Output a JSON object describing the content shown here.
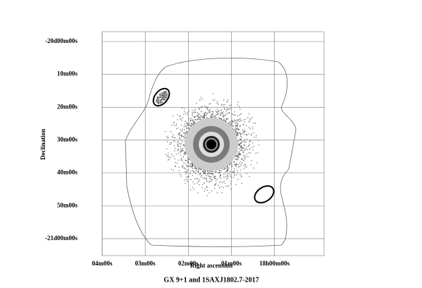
{
  "chart_data": {
    "type": "sky-image",
    "title": "GX 9+1 and 1SAXJ1802.7-2017",
    "x_label": "Right ascension",
    "y_label": "Declination",
    "xlim": [
      4,
      -1.15
    ],
    "ylim": [
      -21.086,
      -19.95
    ],
    "xticks": [
      {
        "value": 4,
        "label": "04m00s"
      },
      {
        "value": 3,
        "label": "03m00s"
      },
      {
        "value": 2,
        "label": "02m00s"
      },
      {
        "value": 1,
        "label": "01m00s"
      },
      {
        "value": 0,
        "label": "18h00m00s"
      }
    ],
    "yticks": [
      {
        "value": -20,
        "label": "-20d00m00s"
      },
      {
        "value": -20.1667,
        "label": "10m00s"
      },
      {
        "value": -20.3333,
        "label": "20m00s"
      },
      {
        "value": -20.5,
        "label": "30m00s"
      },
      {
        "value": -20.6667,
        "label": "40m00s"
      },
      {
        "value": -20.8333,
        "label": "50m00s"
      },
      {
        "value": -21,
        "label": "-21d00m00s"
      }
    ],
    "grid": true
  }
}
